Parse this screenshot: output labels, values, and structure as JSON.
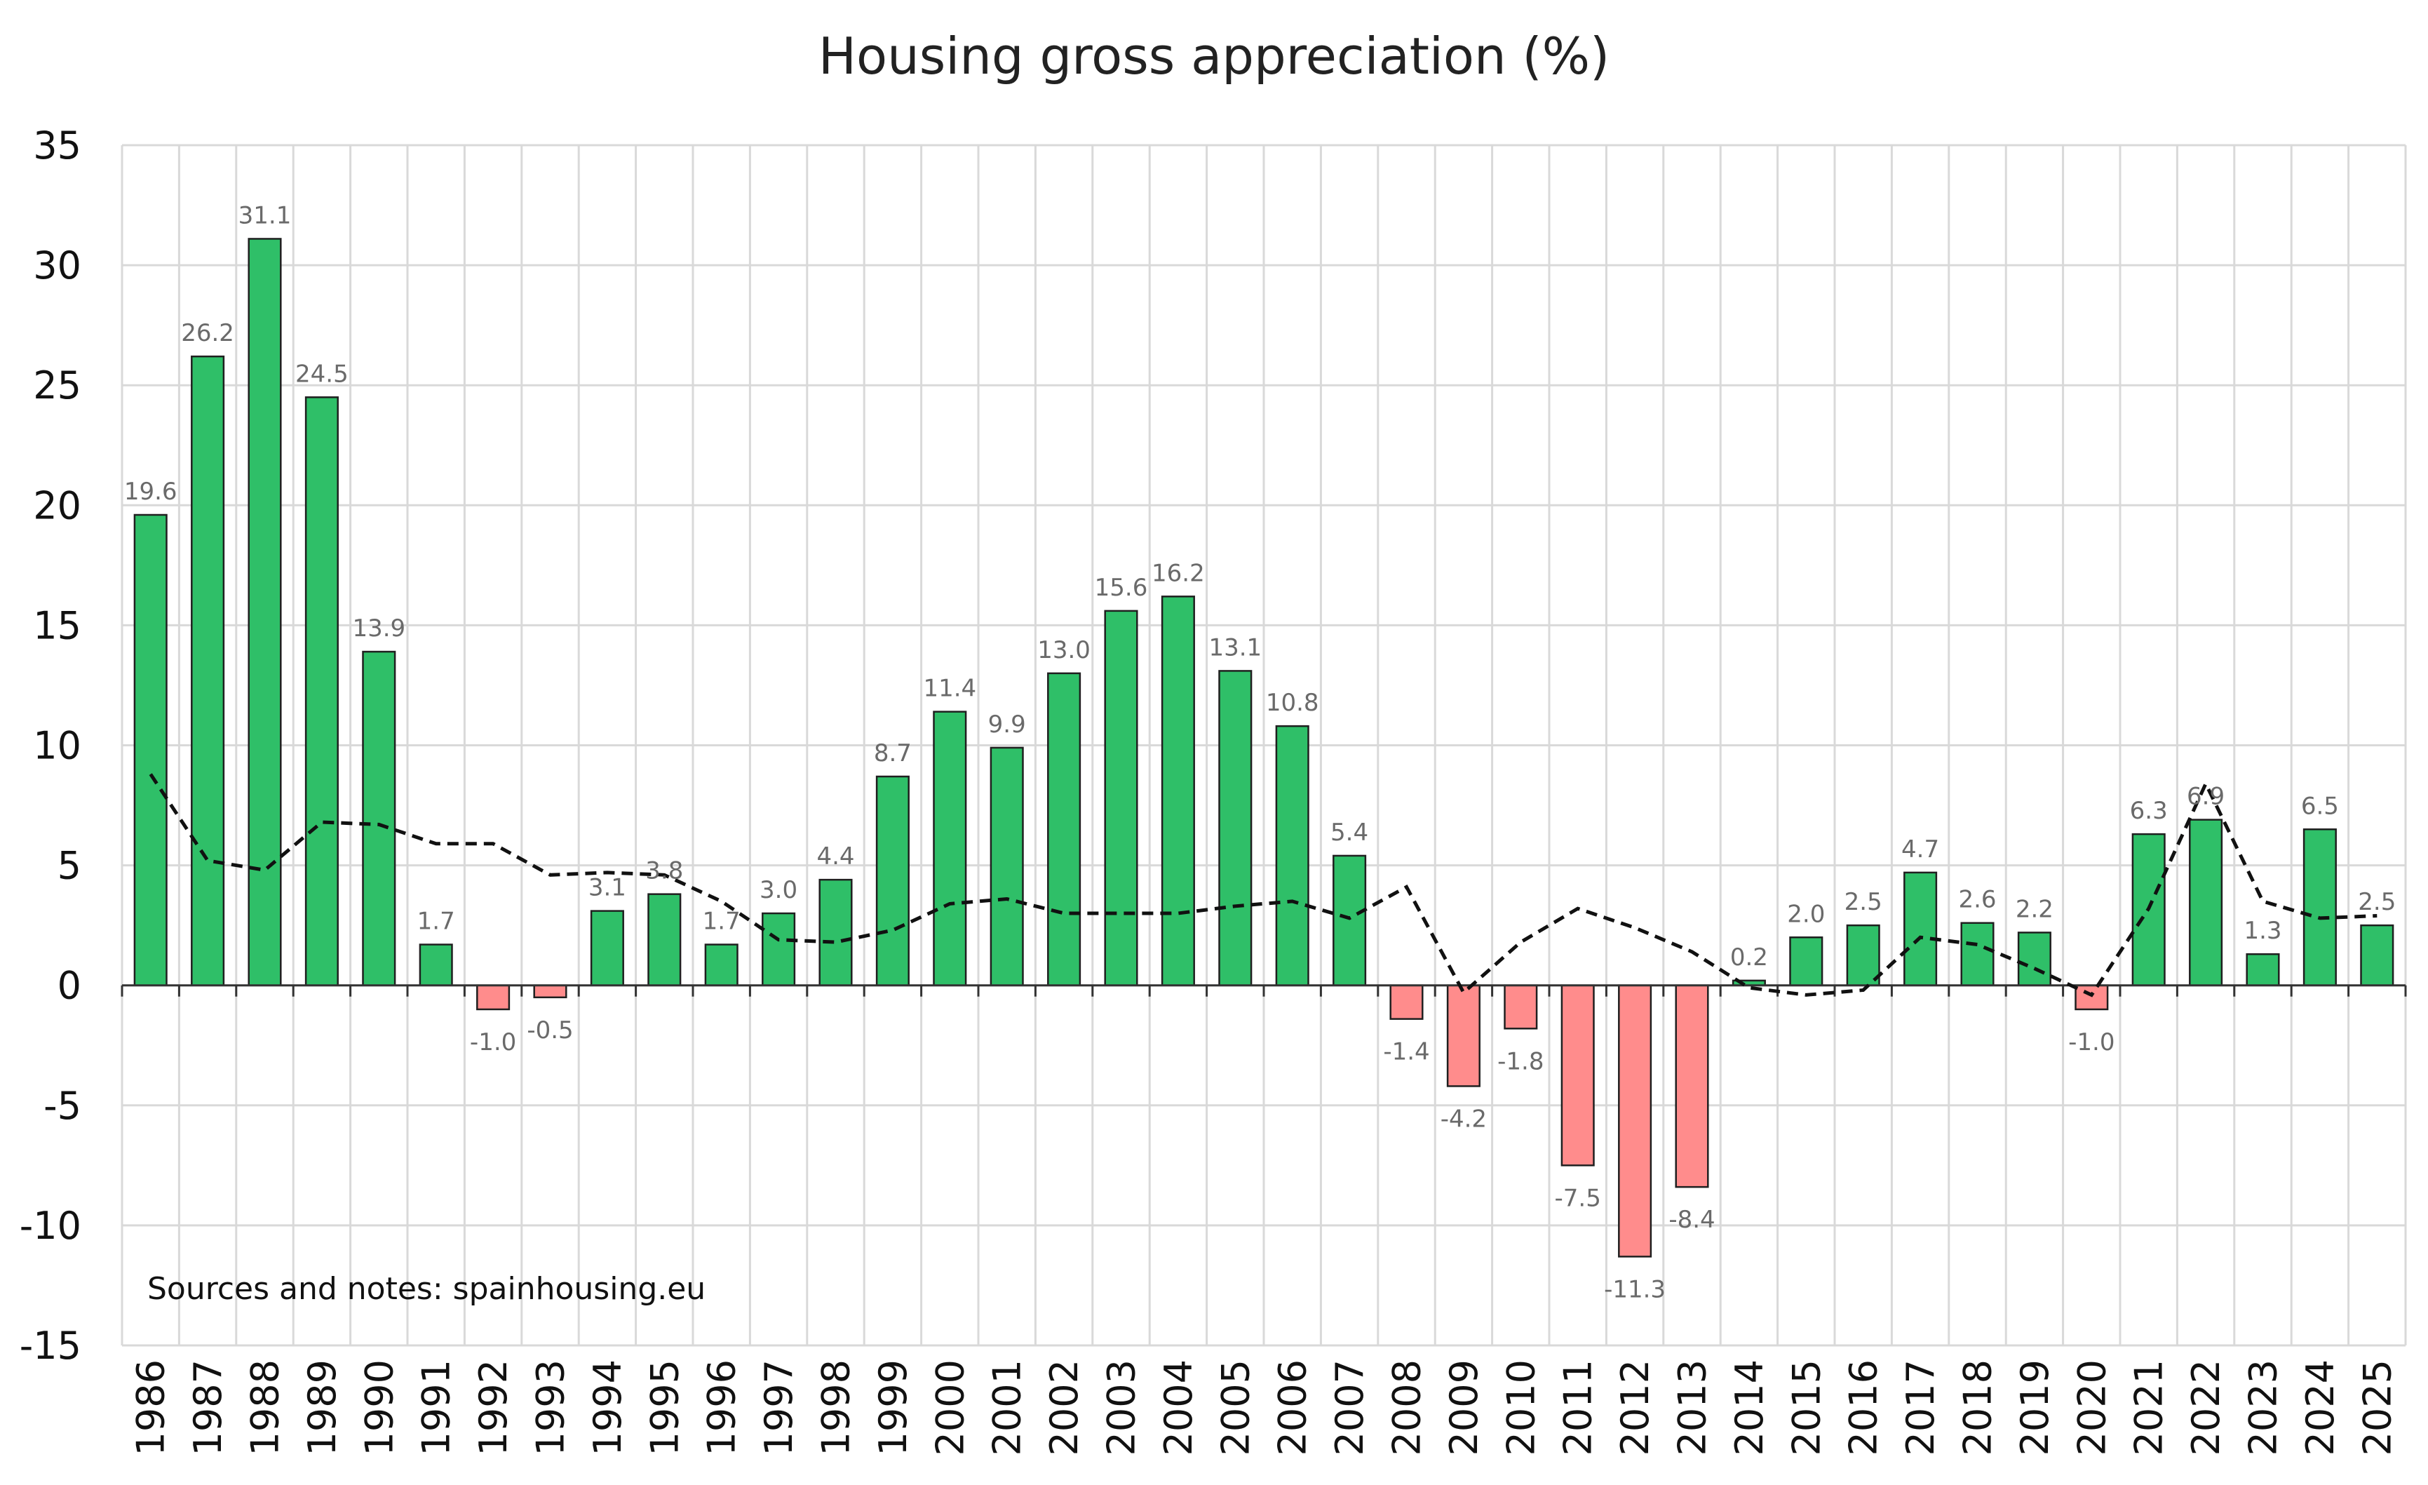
{
  "title": "Housing gross appreciation (%)",
  "note": "Sources and notes: spainhousing.eu",
  "colors": {
    "positive": "#2fbf68",
    "negative": "#ff8c8c",
    "bar_stroke": "#1f1f1f",
    "line": "#111111",
    "grid": "#d9d9d9",
    "label": "#6a6a6a"
  },
  "chart_data": {
    "type": "bar",
    "title": "Housing gross appreciation (%)",
    "xlabel": "",
    "ylabel": "",
    "ylim": [
      -15,
      35
    ],
    "yticks": [
      35,
      30,
      25,
      20,
      15,
      10,
      5,
      0,
      -5,
      -10,
      -15
    ],
    "grid": true,
    "legend": "none",
    "categories": [
      "1986",
      "1987",
      "1988",
      "1989",
      "1990",
      "1991",
      "1992",
      "1993",
      "1994",
      "1995",
      "1996",
      "1997",
      "1998",
      "1999",
      "2000",
      "2001",
      "2002",
      "2003",
      "2004",
      "2005",
      "2006",
      "2007",
      "2008",
      "2009",
      "2010",
      "2011",
      "2012",
      "2013",
      "2014",
      "2015",
      "2016",
      "2017",
      "2018",
      "2019",
      "2020",
      "2021",
      "2022",
      "2023",
      "2024",
      "2025"
    ],
    "values": [
      19.6,
      26.2,
      31.1,
      24.5,
      13.9,
      1.7,
      -1.0,
      -0.5,
      3.1,
      3.8,
      1.7,
      3.0,
      4.4,
      8.7,
      11.4,
      9.9,
      13.0,
      15.6,
      16.2,
      13.1,
      10.8,
      5.4,
      -1.4,
      -4.2,
      -1.8,
      -7.5,
      -11.3,
      -8.4,
      0.2,
      2.0,
      2.5,
      4.7,
      2.6,
      2.2,
      -1.0,
      6.3,
      6.9,
      1.3,
      6.5,
      2.5
    ],
    "data_labels": [
      "19.6",
      "26.2",
      "31.1",
      "24.5",
      "13.9",
      "1.7",
      "-1.0",
      "-0.5",
      "3.1",
      "3.8",
      "1.7",
      "3.0",
      "4.4",
      "8.7",
      "11.4",
      "9.9",
      "13.0",
      "15.6",
      "16.2",
      "13.1",
      "10.8",
      "5.4",
      "-1.4",
      "-4.2",
      "-1.8",
      "-7.5",
      "-11.3",
      "-8.4",
      "0.2",
      "2.0",
      "2.5",
      "4.7",
      "2.6",
      "2.2",
      "-1.0",
      "6.3",
      "6.9",
      "1.3",
      "6.5",
      "2.5"
    ],
    "line_series": {
      "style": "dashed",
      "values": [
        8.8,
        5.2,
        4.8,
        6.8,
        6.7,
        5.9,
        5.9,
        4.6,
        4.7,
        4.6,
        3.5,
        1.9,
        1.8,
        2.3,
        3.4,
        3.6,
        3.0,
        3.0,
        3.0,
        3.3,
        3.5,
        2.8,
        4.1,
        -0.3,
        1.8,
        3.2,
        2.4,
        1.4,
        -0.1,
        -0.4,
        -0.2,
        2.0,
        1.7,
        0.7,
        -0.4,
        3.2,
        8.4,
        3.5,
        2.8,
        2.9
      ]
    }
  }
}
